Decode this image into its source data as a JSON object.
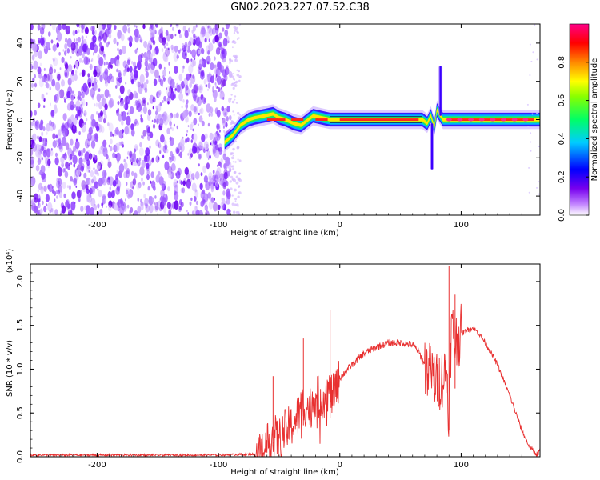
{
  "title": "GN02.2023.227.07.52.C38",
  "chart_data": [
    {
      "type": "heatmap",
      "xlabel": "Height of straight line (km)",
      "ylabel": "Frequency (Hz)",
      "xlim": [
        -255,
        165
      ],
      "ylim": [
        -50,
        50
      ],
      "xticks": [
        -200,
        -100,
        0,
        100
      ],
      "yticks": [
        -40,
        -20,
        0,
        20,
        40
      ],
      "colorbar": {
        "label": "Normalized spectral amplitude",
        "range": [
          0.0,
          1.0
        ],
        "ticks": [
          "0.0",
          "0.2",
          "0.4",
          "0.6",
          "0.8"
        ],
        "colors": [
          "#ffffff",
          "#8800ff",
          "#0000ff",
          "#00ffff",
          "#00ff00",
          "#ffff00",
          "#ff8800",
          "#ff0000",
          "#ff0088"
        ]
      },
      "noise_region_km": [
        -255,
        -90
      ],
      "ridge": {
        "description_free": true,
        "x": [
          -95,
          -88,
          -82,
          -75,
          -70,
          -62,
          -55,
          -50,
          -45,
          -38,
          -32,
          -28,
          -22,
          -15,
          -8,
          0,
          20,
          40,
          60,
          68,
          72,
          75,
          78,
          80,
          85,
          90,
          100,
          120,
          140,
          160,
          165
        ],
        "y": [
          -12,
          -8,
          -3,
          0,
          1,
          2,
          3,
          1,
          0,
          -2,
          -3,
          -1,
          2,
          1,
          0,
          0,
          0,
          0,
          0,
          0,
          -2,
          2,
          -4,
          5,
          0,
          0,
          0,
          0,
          0,
          0,
          0
        ]
      },
      "spikes": [
        {
          "x": 83,
          "y_range": [
            2,
            28
          ]
        },
        {
          "x": 76,
          "y_range": [
            -26,
            -2
          ]
        }
      ]
    },
    {
      "type": "line",
      "xlabel": "Height of straight line (km)",
      "ylabel": "SNR (10 * v/v)",
      "scale_label": "(x10⁴)",
      "xlim": [
        -255,
        165
      ],
      "ylim": [
        0,
        2.2
      ],
      "xticks": [
        -200,
        -100,
        0,
        100
      ],
      "yticks": [
        "0.0",
        "0.5",
        "1.0",
        "1.5",
        "2.0"
      ],
      "color": "#e83030",
      "series": [
        {
          "x": [
            -255,
            -100,
            -70,
            -60,
            -55,
            -50,
            -45,
            -40,
            -35,
            -30,
            -25,
            -20,
            -15,
            -10,
            -5,
            0,
            10,
            20,
            30,
            40,
            50,
            60,
            65,
            70,
            75,
            80,
            85,
            88,
            90,
            92,
            95,
            100,
            105,
            110,
            115,
            120,
            130,
            140,
            150,
            155,
            160,
            163,
            165
          ],
          "y": [
            0.02,
            0.02,
            0.03,
            0.12,
            0.25,
            0.2,
            0.3,
            0.35,
            0.45,
            0.6,
            0.55,
            0.7,
            0.65,
            0.75,
            0.7,
            0.9,
            1.05,
            1.18,
            1.25,
            1.3,
            1.3,
            1.28,
            1.2,
            1.05,
            0.95,
            0.85,
            0.9,
            1.0,
            0.5,
            1.5,
            1.3,
            1.4,
            1.45,
            1.47,
            1.4,
            1.3,
            1.05,
            0.7,
            0.3,
            0.15,
            0.05,
            0.03,
            0.08
          ]
        }
      ],
      "peaks": [
        {
          "x": 90,
          "y": 2.18
        },
        {
          "x": 95,
          "y": 1.85
        },
        {
          "x": -30,
          "y": 1.35
        },
        {
          "x": -8,
          "y": 1.68
        },
        {
          "x": -55,
          "y": 0.92
        }
      ]
    }
  ]
}
